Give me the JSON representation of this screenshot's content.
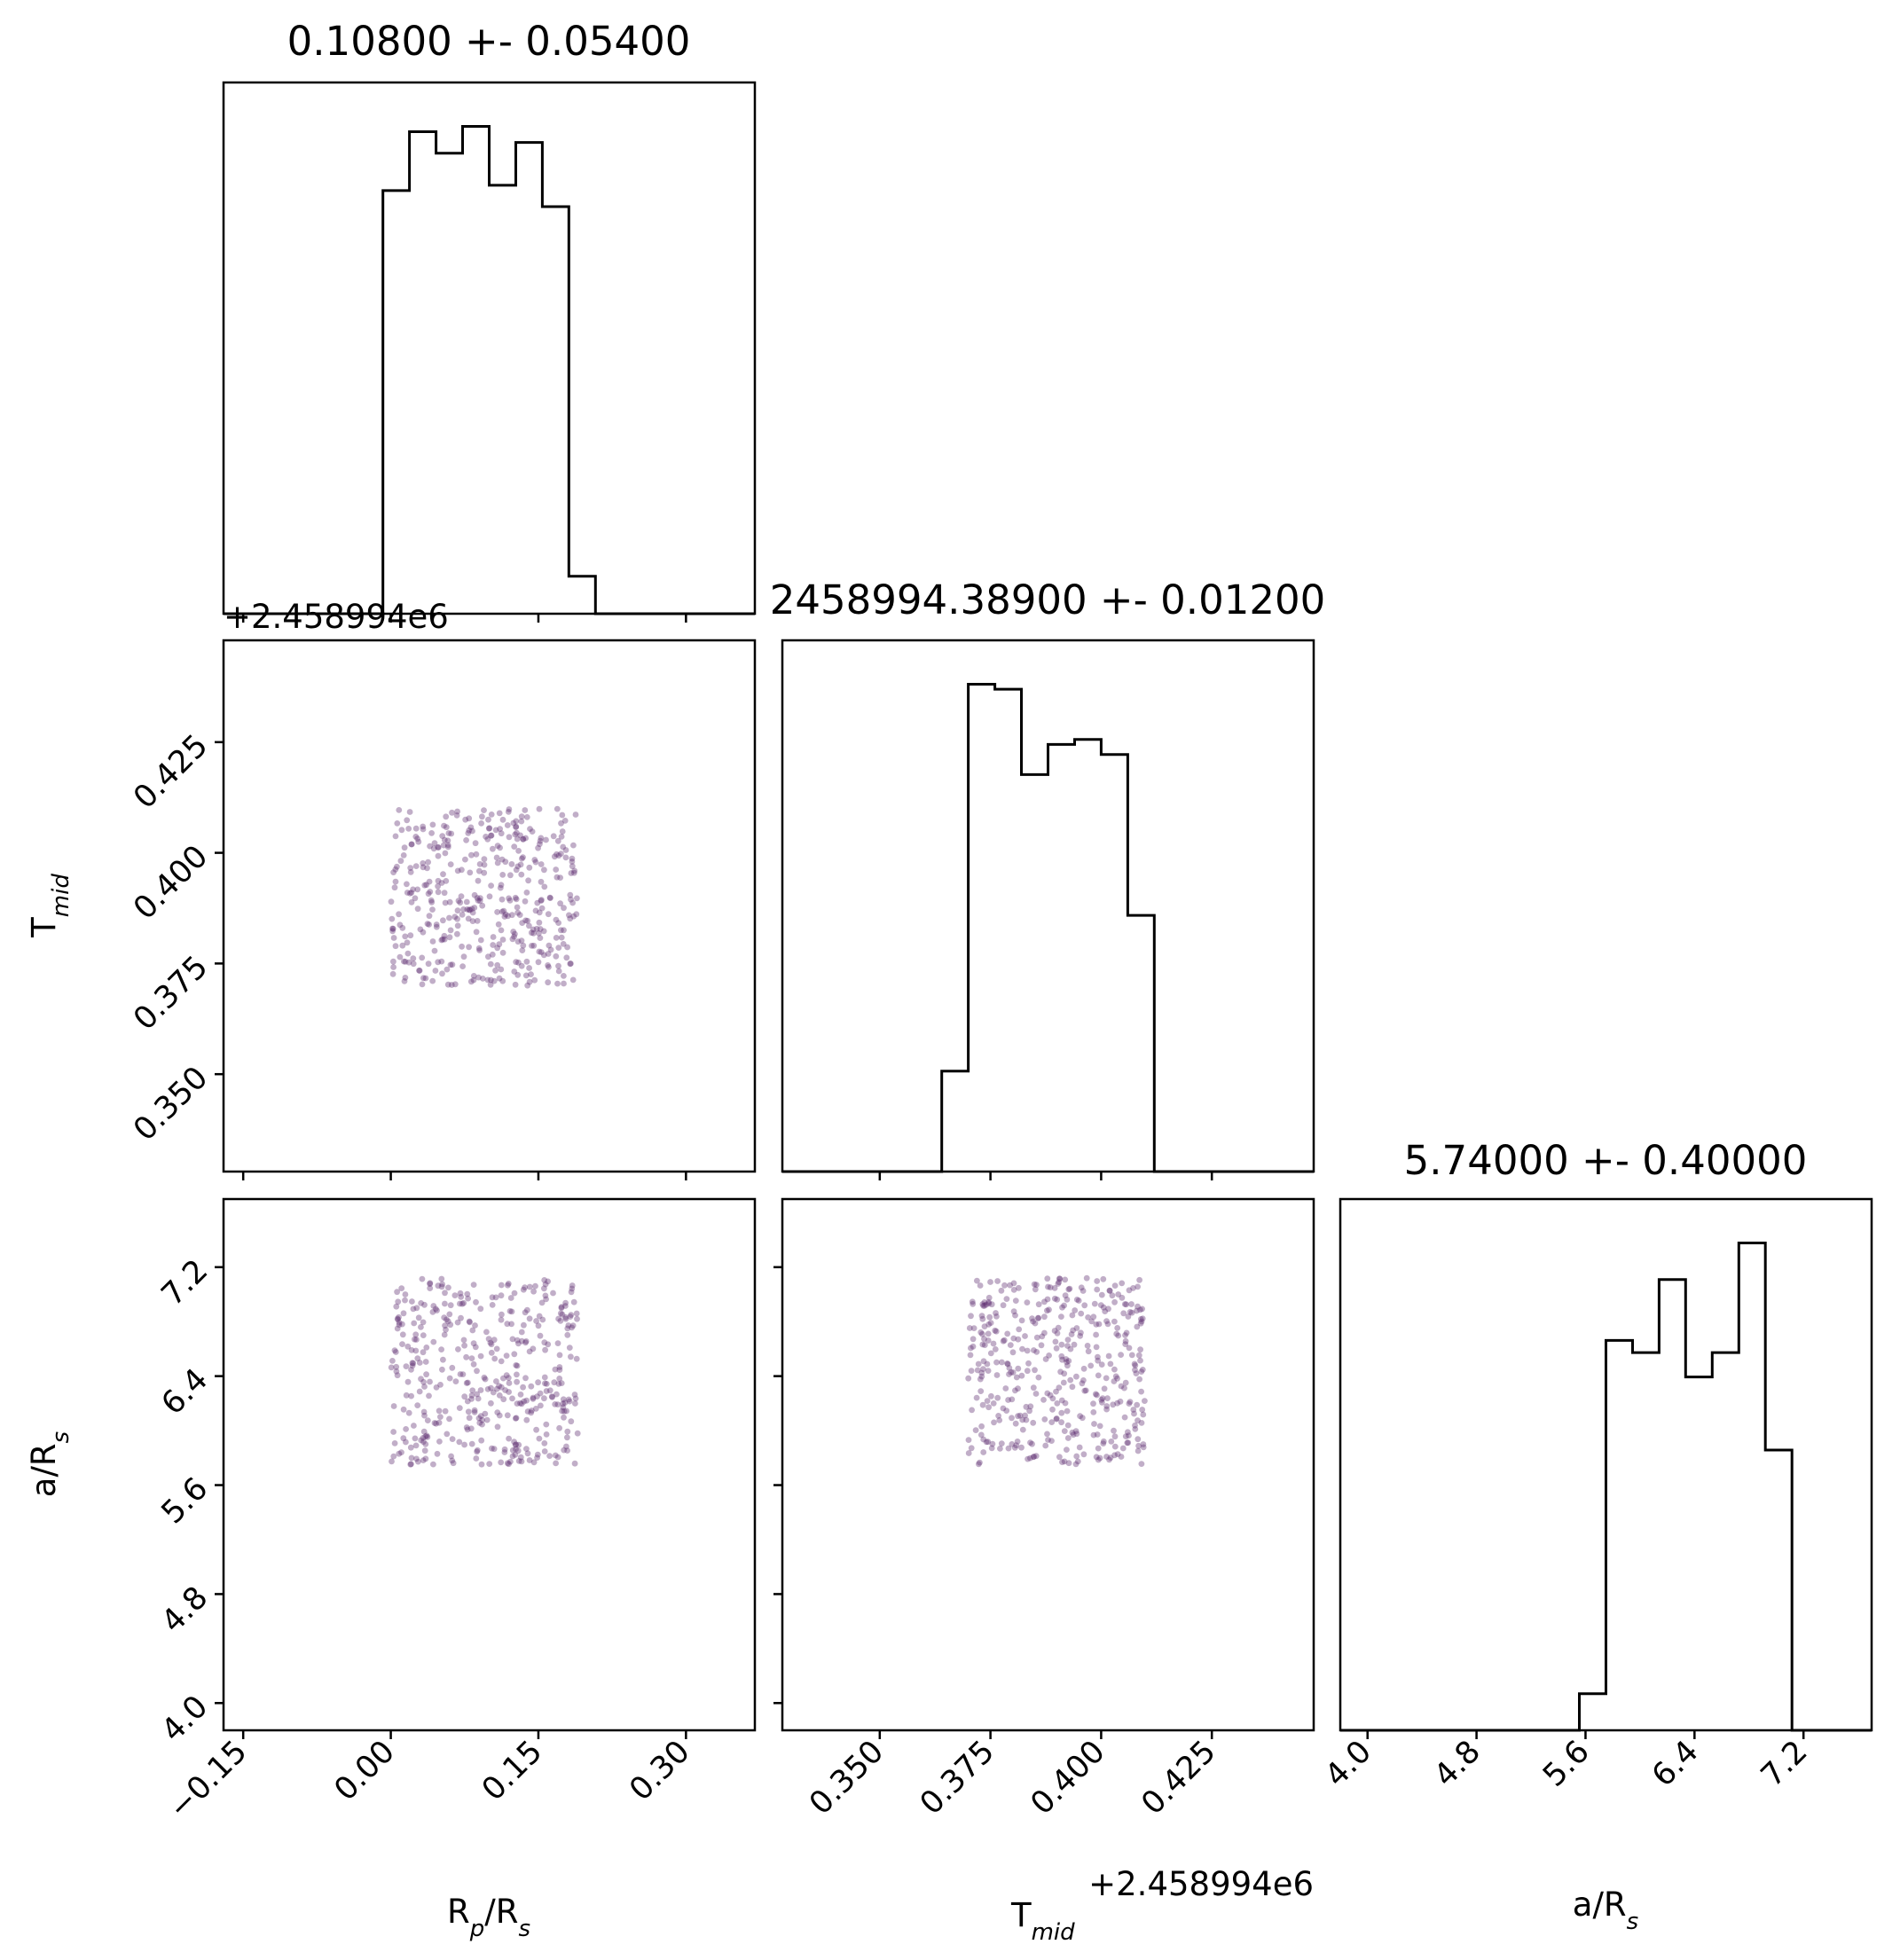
{
  "figure": {
    "type": "corner",
    "parameters": [
      {
        "id": "rp",
        "label": "R",
        "label_sub": "p",
        "label_tail": "/R",
        "label_tail_sub": "s",
        "axis_range": [
          -0.17,
          0.37
        ],
        "ticks": [
          -0.15,
          0.0,
          0.15,
          0.3
        ],
        "tick_labels": [
          "−0.15",
          "0.00",
          "0.15",
          "0.30"
        ],
        "offset_text": ""
      },
      {
        "id": "tmid",
        "label": "T",
        "label_sub": "mid",
        "label_tail": "",
        "label_tail_sub": "",
        "axis_range": [
          0.328,
          0.448
        ],
        "ticks": [
          0.35,
          0.375,
          0.4,
          0.425
        ],
        "tick_labels": [
          "0.350",
          "0.375",
          "0.400",
          "0.425"
        ],
        "offset_text": "+2.458994e6"
      },
      {
        "id": "ars",
        "label": "a/R",
        "label_sub": "s",
        "label_tail": "",
        "label_tail_sub": "",
        "axis_range": [
          3.8,
          7.7
        ],
        "ticks": [
          4.0,
          4.8,
          5.6,
          6.4,
          7.2
        ],
        "tick_labels": [
          "4.0",
          "4.8",
          "5.6",
          "6.4",
          "7.2"
        ],
        "offset_text": ""
      }
    ]
  },
  "titles": {
    "rp": "0.10800 +- 0.05400",
    "tmid": "2458994.38900 +- 0.01200",
    "ars": "5.74000 +- 0.40000"
  },
  "chart_data": [
    {
      "type": "histogram",
      "parameter": "R_p/R_s",
      "bin_edges": [
        -0.17,
        -0.143,
        -0.116,
        -0.089,
        -0.062,
        -0.035,
        -0.008,
        0.019,
        0.046,
        0.073,
        0.1,
        0.127,
        0.154,
        0.181,
        0.208,
        0.235,
        0.262,
        0.289,
        0.316,
        0.343,
        0.37
      ],
      "counts": [
        0,
        0,
        0,
        0,
        0,
        0,
        79,
        90,
        86,
        91,
        80,
        88,
        76,
        7,
        0,
        0,
        0,
        0,
        0,
        0
      ]
    },
    {
      "type": "histogram",
      "parameter": "T_mid",
      "bin_edges": [
        0.328,
        0.334,
        0.34,
        0.346,
        0.352,
        0.358,
        0.364,
        0.37,
        0.376,
        0.382,
        0.388,
        0.394,
        0.4,
        0.406,
        0.412,
        0.418,
        0.424,
        0.43,
        0.436,
        0.442,
        0.448
      ],
      "counts": [
        0,
        0,
        0,
        0,
        0,
        0,
        20,
        97,
        96,
        79,
        85,
        86,
        83,
        51,
        0,
        0,
        0,
        0,
        0,
        0
      ]
    },
    {
      "type": "histogram",
      "parameter": "a/R_s",
      "bin_edges": [
        3.8,
        3.995,
        4.19,
        4.385,
        4.58,
        4.775,
        4.97,
        5.165,
        5.36,
        5.555,
        5.75,
        5.945,
        6.14,
        6.335,
        6.53,
        6.725,
        6.92,
        7.115,
        7.31,
        7.505,
        7.7
      ],
      "counts": [
        0,
        0,
        0,
        0,
        0,
        0,
        0,
        0,
        0,
        6,
        64,
        62,
        74,
        58,
        62,
        80,
        46,
        0,
        0,
        0
      ]
    },
    {
      "type": "scatter",
      "x": "R_p/R_s",
      "y": "T_mid",
      "note_range": {
        "x": [
          0.0,
          0.19
        ],
        "y": [
          0.37,
          0.41
        ]
      }
    },
    {
      "type": "scatter",
      "x": "R_p/R_s",
      "y": "a/R_s",
      "note_range": {
        "x": [
          0.0,
          0.19
        ],
        "y": [
          5.75,
          7.12
        ]
      }
    },
    {
      "type": "scatter",
      "x": "T_mid",
      "y": "a/R_s",
      "note_range": {
        "x": [
          0.37,
          0.41
        ],
        "y": [
          5.75,
          7.12
        ]
      }
    }
  ],
  "colors": {
    "points": "#5b2a6e",
    "axes": "#000000",
    "hist": "#000000"
  }
}
